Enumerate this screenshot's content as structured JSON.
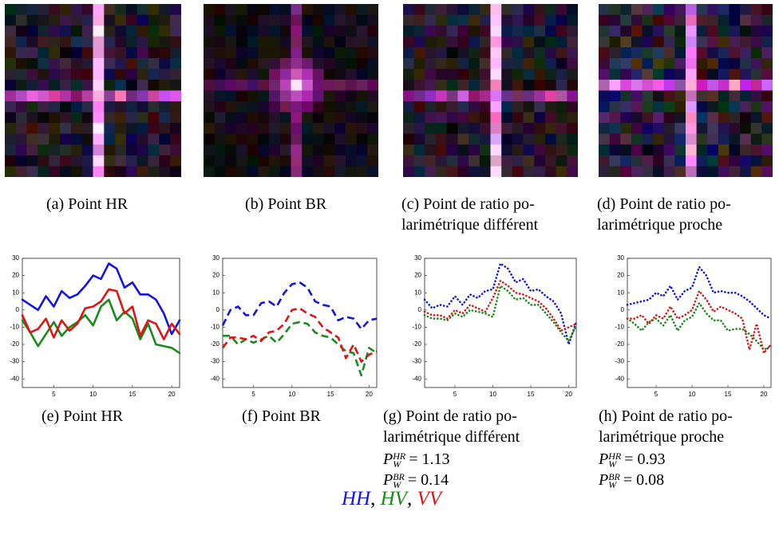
{
  "images": [
    {
      "caption": [
        "(a) Point HR"
      ]
    },
    {
      "caption": [
        "(b) Point BR"
      ]
    },
    {
      "caption": [
        "(c) Point de ratio po-",
        "larimétrique différent"
      ]
    },
    {
      "caption": [
        "(d) Point de ratio po-",
        "larimétrique proche"
      ]
    }
  ],
  "chart_data": [
    {
      "type": "line",
      "caption": [
        "(e) Point HR"
      ],
      "linestyle": "solid",
      "x": [
        1,
        2,
        3,
        4,
        5,
        6,
        7,
        8,
        9,
        10,
        11,
        12,
        13,
        14,
        15,
        16,
        17,
        18,
        19,
        20,
        21
      ],
      "xlim": [
        1,
        21
      ],
      "ylim": [
        -45,
        30
      ],
      "xticks": [
        5,
        10,
        15,
        20
      ],
      "yticks": [
        -40,
        -30,
        -20,
        -10,
        0,
        10,
        20,
        30
      ],
      "series": [
        {
          "name": "HH",
          "color": "#1414e0",
          "values": [
            6,
            3,
            0,
            8,
            2,
            11,
            7,
            9,
            14,
            20,
            18,
            27,
            24,
            13,
            16,
            9,
            9,
            6,
            -2,
            -14,
            -6
          ]
        },
        {
          "name": "HV",
          "color": "#1a8a1a",
          "values": [
            -6,
            -13,
            -21,
            -14,
            -7,
            -15,
            -10,
            -7,
            -3,
            -9,
            2,
            6,
            -6,
            -1,
            -5,
            -17,
            -8,
            -20,
            -21,
            -22,
            -25
          ]
        },
        {
          "name": "VV",
          "color": "#e01414",
          "values": [
            -3,
            -13,
            -11,
            -5,
            -16,
            -6,
            -12,
            -8,
            1,
            2,
            5,
            12,
            11,
            -2,
            2,
            -15,
            -6,
            -8,
            -17,
            -8,
            -14
          ]
        }
      ]
    },
    {
      "type": "line",
      "caption": [
        "(f) Point BR"
      ],
      "linestyle": "dashed",
      "x": [
        1,
        2,
        3,
        4,
        5,
        6,
        7,
        8,
        9,
        10,
        11,
        12,
        13,
        14,
        15,
        16,
        17,
        18,
        19,
        20,
        21
      ],
      "xlim": [
        1,
        21
      ],
      "ylim": [
        -45,
        30
      ],
      "xticks": [
        5,
        10,
        15,
        20
      ],
      "yticks": [
        -40,
        -30,
        -20,
        -10,
        0,
        10,
        20,
        30
      ],
      "series": [
        {
          "name": "HH",
          "color": "#1414e0",
          "values": [
            -9,
            0,
            2,
            -3,
            -3,
            4,
            5,
            2,
            10,
            15,
            16,
            13,
            5,
            3,
            2,
            -6,
            -4,
            -5,
            -11,
            -6,
            -5
          ]
        },
        {
          "name": "HV",
          "color": "#1a8a1a",
          "values": [
            -15,
            -15,
            -20,
            -17,
            -19,
            -17,
            -15,
            -19,
            -14,
            -8,
            -7,
            -8,
            -13,
            -15,
            -16,
            -20,
            -24,
            -25,
            -38,
            -22,
            -25
          ]
        },
        {
          "name": "VV",
          "color": "#e01414",
          "values": [
            -22,
            -16,
            -16,
            -17,
            -15,
            -18,
            -13,
            -12,
            -8,
            0,
            1,
            -2,
            -4,
            -10,
            -13,
            -16,
            -28,
            -20,
            -30,
            -26,
            -24
          ]
        }
      ]
    },
    {
      "type": "line",
      "caption": [
        "(g) Point de ratio po-",
        "larimétrique différent"
      ],
      "linestyle": "dotted",
      "annotations": [
        {
          "base": "P",
          "sub": "W",
          "sup": "HR",
          "relation": "=",
          "value": 1.13
        },
        {
          "base": "P",
          "sub": "W",
          "sup": "BR",
          "relation": "=",
          "value": 0.14
        }
      ],
      "x": [
        1,
        2,
        3,
        4,
        5,
        6,
        7,
        8,
        9,
        10,
        11,
        12,
        13,
        14,
        15,
        16,
        17,
        18,
        19,
        20,
        21
      ],
      "xlim": [
        1,
        21
      ],
      "ylim": [
        -45,
        30
      ],
      "xticks": [
        5,
        10,
        15,
        20
      ],
      "yticks": [
        -40,
        -30,
        -20,
        -10,
        0,
        10,
        20,
        30
      ],
      "series": [
        {
          "name": "HH",
          "color": "#1414e0",
          "values": [
            6,
            1,
            3,
            2,
            8,
            3,
            9,
            7,
            11,
            12,
            27,
            24,
            16,
            18,
            11,
            12,
            8,
            5,
            -2,
            -20,
            -7
          ]
        },
        {
          "name": "HV",
          "color": "#1a8a1a",
          "values": [
            -3,
            -5,
            -5,
            -6,
            -2,
            -4,
            0,
            -1,
            -2,
            -4,
            14,
            11,
            6,
            7,
            3,
            3,
            -2,
            -7,
            -13,
            -18,
            -9
          ]
        },
        {
          "name": "VV",
          "color": "#e01414",
          "values": [
            -1,
            -3,
            -3,
            -5,
            0,
            -2,
            3,
            1,
            -1,
            7,
            17,
            14,
            10,
            9,
            7,
            5,
            1,
            -5,
            -12,
            -10,
            -8
          ]
        }
      ]
    },
    {
      "type": "line",
      "caption": [
        "(h) Point de ratio po-",
        "larimétrique proche"
      ],
      "linestyle": "dotted",
      "annotations": [
        {
          "base": "P",
          "sub": "W",
          "sup": "HR",
          "relation": "=",
          "value": 0.93
        },
        {
          "base": "P",
          "sub": "W",
          "sup": "BR",
          "relation": "=",
          "value": 0.08
        }
      ],
      "x": [
        1,
        2,
        3,
        4,
        5,
        6,
        7,
        8,
        9,
        10,
        11,
        12,
        13,
        14,
        15,
        16,
        17,
        18,
        19,
        20,
        21
      ],
      "xlim": [
        1,
        21
      ],
      "ylim": [
        -45,
        30
      ],
      "xticks": [
        5,
        10,
        15,
        20
      ],
      "yticks": [
        -40,
        -30,
        -20,
        -10,
        0,
        10,
        20,
        30
      ],
      "series": [
        {
          "name": "HH",
          "color": "#1414e0",
          "values": [
            3,
            4,
            5,
            6,
            10,
            8,
            14,
            6,
            11,
            13,
            25,
            20,
            10,
            11,
            10,
            10,
            8,
            5,
            1,
            -3,
            -5
          ]
        },
        {
          "name": "HV",
          "color": "#1a8a1a",
          "values": [
            -5,
            -8,
            -12,
            -7,
            -5,
            -9,
            -3,
            -12,
            -6,
            -4,
            4,
            -2,
            -6,
            -6,
            -12,
            -11,
            -11,
            -14,
            -18,
            -23,
            -21
          ]
        },
        {
          "name": "VV",
          "color": "#e01414",
          "values": [
            -5,
            -5,
            -3,
            -8,
            -3,
            -5,
            2,
            -5,
            -3,
            0,
            11,
            6,
            -1,
            2,
            0,
            -2,
            -5,
            -23,
            -8,
            -25,
            -20
          ]
        }
      ]
    }
  ],
  "legend_separator": ", "
}
